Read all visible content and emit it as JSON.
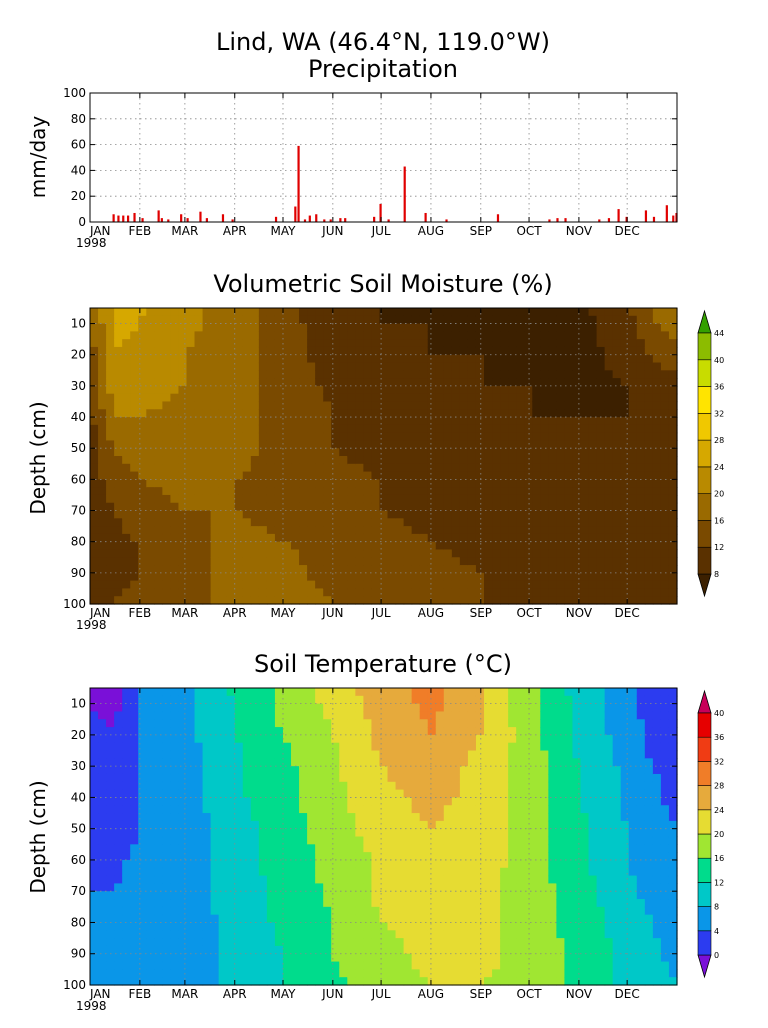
{
  "header": {
    "location": "Lind, WA  (46.4°N, 119.0°W)",
    "precip_title": "Precipitation",
    "moisture_title": "Volumetric Soil Moisture (%)",
    "temperature_title": "Soil Temperature (°C)"
  },
  "chart_data": [
    {
      "type": "bar",
      "title": "Precipitation",
      "ylabel": "mm/day",
      "ylim": [
        0,
        100
      ],
      "yticks": [
        0,
        20,
        40,
        60,
        80,
        100
      ],
      "x_tick_labels": [
        "JAN",
        "FEB",
        "MAR",
        "APR",
        "MAY",
        "JUN",
        "JUL",
        "AUG",
        "SEP",
        "OCT",
        "NOV",
        "DEC"
      ],
      "x_year_label": "1998",
      "grid": true,
      "bar_color": "#e00000",
      "series": [
        {
          "x": [
            14,
            17,
            20,
            23,
            27,
            32,
            42,
            44,
            48,
            56,
            60,
            68,
            72,
            82,
            88,
            115,
            127,
            129,
            133,
            136,
            140,
            145,
            149,
            155,
            158,
            176,
            180,
            185,
            195,
            208,
            221,
            253,
            285,
            290,
            295,
            316,
            322,
            328,
            333,
            345,
            350,
            358,
            362,
            364
          ],
          "values": [
            6,
            5,
            5,
            5,
            7,
            3,
            9,
            3,
            2,
            6,
            3,
            8,
            3,
            6,
            2,
            4,
            12,
            59,
            2,
            5,
            6,
            2,
            2,
            3,
            3,
            4,
            14,
            2,
            43,
            7,
            2,
            6,
            2,
            3,
            3,
            2,
            3,
            10,
            4,
            9,
            4,
            13,
            5,
            7
          ]
        }
      ]
    },
    {
      "type": "heatmap",
      "title": "Volumetric Soil Moisture (%)",
      "ylabel": "Depth (cm)",
      "ylim": [
        100,
        5
      ],
      "yticks": [
        10,
        20,
        30,
        40,
        50,
        60,
        70,
        80,
        90,
        100
      ],
      "x_tick_labels": [
        "JAN",
        "FEB",
        "MAR",
        "APR",
        "MAY",
        "JUN",
        "JUL",
        "AUG",
        "SEP",
        "OCT",
        "NOV",
        "DEC"
      ],
      "x_year_label": "1998",
      "grid": true,
      "colorbar": {
        "levels": [
          8,
          12,
          16,
          20,
          24,
          28,
          32,
          36,
          40,
          44
        ],
        "labels": [
          "8",
          "12",
          "16",
          "20",
          "24",
          "28",
          "32",
          "36",
          "40",
          "44"
        ],
        "colors": [
          "#3c2000",
          "#5a3100",
          "#7a4a00",
          "#9a6a00",
          "#b98a00",
          "#d6a800",
          "#f0c800",
          "#ffe400",
          "#c8dc00",
          "#8cbc00",
          "#34a000"
        ]
      },
      "depth_profiles": {
        "depths": [
          5,
          10,
          20,
          30,
          40,
          50,
          60,
          70,
          80,
          90,
          100
        ],
        "profiles": [
          {
            "day": 0,
            "values": [
              15,
              15,
              14,
              12,
              11,
              10,
              10,
              10,
              10,
              11,
              12
            ]
          },
          {
            "day": 15,
            "values": [
              26,
              25,
              24,
              22,
              20,
              16,
              14,
              12,
              11,
              11,
              12
            ]
          },
          {
            "day": 30,
            "values": [
              25,
              24,
              23,
              22,
              20,
              18,
              16,
              14,
              12,
              12,
              13
            ]
          },
          {
            "day": 59,
            "values": [
              21,
              21,
              20,
              20,
              19,
              18,
              17,
              16,
              15,
              14,
              14
            ]
          },
          {
            "day": 90,
            "values": [
              18,
              18,
              18,
              17,
              17,
              17,
              16,
              16,
              17,
              18,
              18
            ]
          },
          {
            "day": 120,
            "values": [
              13,
              14,
              14,
              15,
              15,
              15,
              15,
              15,
              16,
              17,
              17
            ]
          },
          {
            "day": 151,
            "values": [
              8,
              9,
              10,
              11,
              12,
              12,
              13,
              14,
              15,
              15,
              16
            ]
          },
          {
            "day": 181,
            "values": [
              8,
              8,
              9,
              9,
              10,
              11,
              12,
              12,
              13,
              14,
              15
            ]
          },
          {
            "day": 212,
            "values": [
              7,
              8,
              8,
              8,
              9,
              9,
              10,
              11,
              12,
              13,
              13
            ]
          },
          {
            "day": 243,
            "values": [
              7,
              7,
              8,
              8,
              8,
              9,
              9,
              10,
              11,
              12,
              12
            ]
          },
          {
            "day": 273,
            "values": [
              7,
              7,
              7,
              8,
              8,
              8,
              9,
              9,
              10,
              11,
              12
            ]
          },
          {
            "day": 304,
            "values": [
              7,
              7,
              7,
              7,
              8,
              8,
              8,
              9,
              9,
              10,
              11
            ]
          },
          {
            "day": 334,
            "values": [
              11,
              10,
              9,
              8,
              8,
              8,
              8,
              8,
              9,
              9,
              10
            ]
          },
          {
            "day": 349,
            "values": [
              17,
              15,
              12,
              10,
              9,
              8,
              8,
              8,
              8,
              9,
              9
            ]
          },
          {
            "day": 364,
            "values": [
              19,
              18,
              14,
              11,
              9,
              8,
              8,
              8,
              8,
              8,
              9
            ]
          }
        ]
      }
    },
    {
      "type": "heatmap",
      "title": "Soil Temperature (°C)",
      "ylabel": "Depth (cm)",
      "ylim": [
        100,
        5
      ],
      "yticks": [
        10,
        20,
        30,
        40,
        50,
        60,
        70,
        80,
        90,
        100
      ],
      "x_tick_labels": [
        "JAN",
        "FEB",
        "MAR",
        "APR",
        "MAY",
        "JUN",
        "JUL",
        "AUG",
        "SEP",
        "OCT",
        "NOV",
        "DEC"
      ],
      "x_year_label": "1998",
      "grid": true,
      "colorbar": {
        "levels": [
          0,
          4,
          8,
          12,
          16,
          20,
          24,
          28,
          32,
          36,
          40
        ],
        "labels": [
          "0",
          "4",
          "8",
          "12",
          "16",
          "20",
          "24",
          "28",
          "32",
          "36",
          "40"
        ],
        "colors": [
          "#7a10d8",
          "#2c3cf0",
          "#0a96e8",
          "#00c8c8",
          "#00dc8c",
          "#a0e632",
          "#e6dc32",
          "#e6aa3c",
          "#f07d28",
          "#f03c14",
          "#e60000",
          "#c8005a"
        ]
      },
      "depth_profiles": {
        "depths": [
          5,
          10,
          20,
          30,
          40,
          50,
          60,
          70,
          80,
          90,
          100
        ],
        "profiles": [
          {
            "day": 0,
            "values": [
              -1,
              0,
              1,
              2,
              2,
              3,
              4,
              4,
              5,
              5,
              6
            ]
          },
          {
            "day": 15,
            "values": [
              -1,
              -1,
              0,
              1,
              2,
              2,
              3,
              4,
              4,
              5,
              5
            ]
          },
          {
            "day": 31,
            "values": [
              4,
              4,
              4,
              4,
              4,
              4,
              5,
              5,
              5,
              5,
              5
            ]
          },
          {
            "day": 59,
            "values": [
              7,
              7,
              7,
              6,
              6,
              6,
              6,
              6,
              6,
              6,
              6
            ]
          },
          {
            "day": 90,
            "values": [
              13,
              12,
              12,
              11,
              11,
              10,
              10,
              10,
              9,
              9,
              9
            ]
          },
          {
            "day": 120,
            "values": [
              17,
              17,
              16,
              15,
              15,
              14,
              14,
              13,
              13,
              12,
              12
            ]
          },
          {
            "day": 151,
            "values": [
              22,
              21,
              20,
              19,
              19,
              18,
              17,
              17,
              16,
              16,
              15
            ]
          },
          {
            "day": 181,
            "values": [
              26,
              26,
              25,
              24,
              23,
              22,
              21,
              21,
              20,
              19,
              19
            ]
          },
          {
            "day": 212,
            "values": [
              30,
              29,
              28,
              26,
              25,
              24,
              23,
              22,
              21,
              21,
              20
            ]
          },
          {
            "day": 243,
            "values": [
              24,
              24,
              24,
              23,
              23,
              22,
              22,
              21,
              21,
              21,
              20
            ]
          },
          {
            "day": 273,
            "values": [
              17,
              17,
              18,
              18,
              18,
              18,
              18,
              18,
              18,
              19,
              19
            ]
          },
          {
            "day": 304,
            "values": [
              10,
              11,
              11,
              12,
              12,
              13,
              13,
              14,
              14,
              15,
              15
            ]
          },
          {
            "day": 334,
            "values": [
              5,
              6,
              6,
              7,
              7,
              8,
              8,
              9,
              10,
              11,
              11
            ]
          },
          {
            "day": 349,
            "values": [
              1,
              2,
              3,
              4,
              5,
              6,
              6,
              7,
              8,
              9,
              10
            ]
          },
          {
            "day": 364,
            "values": [
              0,
              1,
              2,
              3,
              3,
              4,
              5,
              6,
              6,
              7,
              8
            ]
          }
        ]
      }
    }
  ]
}
